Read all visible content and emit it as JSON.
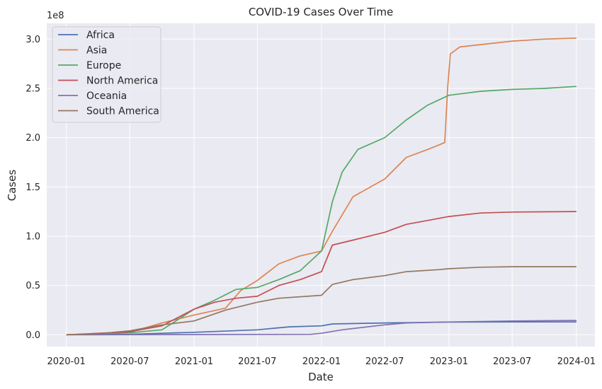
{
  "chart_data": {
    "type": "line",
    "title": "COVID-19 Cases Over Time",
    "xlabel": "Date",
    "ylabel": "Cases",
    "y_offset_label": "1e8",
    "y_multiplier": 100000000,
    "xlim": [
      "2019-11-06",
      "2024-02-23"
    ],
    "ylim": [
      -0.12,
      3.16
    ],
    "grid": true,
    "legend_position": "upper left",
    "background": "#eaeaf2",
    "x_ticks": [
      {
        "date": "2020-01-01",
        "label": "2020-01"
      },
      {
        "date": "2020-07-01",
        "label": "2020-07"
      },
      {
        "date": "2021-01-01",
        "label": "2021-01"
      },
      {
        "date": "2021-07-01",
        "label": "2021-07"
      },
      {
        "date": "2022-01-01",
        "label": "2022-01"
      },
      {
        "date": "2022-07-01",
        "label": "2022-07"
      },
      {
        "date": "2023-01-01",
        "label": "2023-01"
      },
      {
        "date": "2023-07-01",
        "label": "2023-07"
      },
      {
        "date": "2024-01-01",
        "label": "2024-01"
      }
    ],
    "y_ticks": [
      {
        "value": 0.0,
        "label": "0.0"
      },
      {
        "value": 0.5,
        "label": "0.5"
      },
      {
        "value": 1.0,
        "label": "1.0"
      },
      {
        "value": 1.5,
        "label": "1.5"
      },
      {
        "value": 2.0,
        "label": "2.0"
      },
      {
        "value": 2.5,
        "label": "2.5"
      },
      {
        "value": 3.0,
        "label": "3.0"
      }
    ],
    "series": [
      {
        "name": "Africa",
        "color": "#4c72b0",
        "points": [
          [
            "2020-01-01",
            0.0
          ],
          [
            "2020-07-01",
            0.005
          ],
          [
            "2020-10-01",
            0.015
          ],
          [
            "2021-01-01",
            0.025
          ],
          [
            "2021-07-01",
            0.05
          ],
          [
            "2021-10-01",
            0.08
          ],
          [
            "2022-01-01",
            0.09
          ],
          [
            "2022-02-01",
            0.11
          ],
          [
            "2022-07-01",
            0.12
          ],
          [
            "2023-01-01",
            0.128
          ],
          [
            "2023-07-01",
            0.13
          ],
          [
            "2024-01-01",
            0.13
          ]
        ]
      },
      {
        "name": "Asia",
        "color": "#dd8452",
        "points": [
          [
            "2020-01-01",
            0.0
          ],
          [
            "2020-04-01",
            0.01
          ],
          [
            "2020-07-01",
            0.025
          ],
          [
            "2020-10-01",
            0.12
          ],
          [
            "2021-01-01",
            0.2
          ],
          [
            "2021-04-01",
            0.27
          ],
          [
            "2021-05-15",
            0.45
          ],
          [
            "2021-07-01",
            0.55
          ],
          [
            "2021-09-01",
            0.72
          ],
          [
            "2021-11-01",
            0.8
          ],
          [
            "2022-01-01",
            0.85
          ],
          [
            "2022-02-01",
            1.05
          ],
          [
            "2022-04-01",
            1.4
          ],
          [
            "2022-07-01",
            1.58
          ],
          [
            "2022-09-01",
            1.8
          ],
          [
            "2022-11-01",
            1.88
          ],
          [
            "2022-12-20",
            1.95
          ],
          [
            "2022-12-28",
            2.5
          ],
          [
            "2023-01-05",
            2.85
          ],
          [
            "2023-02-01",
            2.92
          ],
          [
            "2023-07-01",
            2.98
          ],
          [
            "2023-10-01",
            3.0
          ],
          [
            "2024-01-01",
            3.01
          ]
        ]
      },
      {
        "name": "Europe",
        "color": "#55a868",
        "points": [
          [
            "2020-01-01",
            0.0
          ],
          [
            "2020-07-01",
            0.02
          ],
          [
            "2020-10-01",
            0.05
          ],
          [
            "2020-11-01",
            0.12
          ],
          [
            "2021-01-01",
            0.26
          ],
          [
            "2021-03-01",
            0.35
          ],
          [
            "2021-05-01",
            0.46
          ],
          [
            "2021-07-01",
            0.48
          ],
          [
            "2021-09-01",
            0.56
          ],
          [
            "2021-11-01",
            0.65
          ],
          [
            "2022-01-01",
            0.85
          ],
          [
            "2022-02-01",
            1.35
          ],
          [
            "2022-03-01",
            1.65
          ],
          [
            "2022-04-15",
            1.88
          ],
          [
            "2022-07-01",
            2.0
          ],
          [
            "2022-09-01",
            2.18
          ],
          [
            "2022-11-01",
            2.33
          ],
          [
            "2023-01-01",
            2.43
          ],
          [
            "2023-04-01",
            2.47
          ],
          [
            "2023-07-01",
            2.49
          ],
          [
            "2023-10-01",
            2.5
          ],
          [
            "2024-01-01",
            2.52
          ]
        ]
      },
      {
        "name": "North America",
        "color": "#c44e52",
        "points": [
          [
            "2020-01-01",
            0.0
          ],
          [
            "2020-07-01",
            0.03
          ],
          [
            "2020-10-01",
            0.09
          ],
          [
            "2021-01-01",
            0.26
          ],
          [
            "2021-03-01",
            0.33
          ],
          [
            "2021-05-01",
            0.37
          ],
          [
            "2021-07-01",
            0.39
          ],
          [
            "2021-09-01",
            0.5
          ],
          [
            "2021-11-01",
            0.56
          ],
          [
            "2022-01-01",
            0.64
          ],
          [
            "2022-02-01",
            0.91
          ],
          [
            "2022-04-01",
            0.96
          ],
          [
            "2022-07-01",
            1.04
          ],
          [
            "2022-09-01",
            1.12
          ],
          [
            "2022-11-01",
            1.16
          ],
          [
            "2023-01-01",
            1.2
          ],
          [
            "2023-04-01",
            1.235
          ],
          [
            "2023-07-01",
            1.245
          ],
          [
            "2024-01-01",
            1.25
          ]
        ]
      },
      {
        "name": "Oceania",
        "color": "#8172b3",
        "points": [
          [
            "2020-01-01",
            0.0
          ],
          [
            "2021-01-01",
            0.002
          ],
          [
            "2021-12-01",
            0.004
          ],
          [
            "2022-01-01",
            0.015
          ],
          [
            "2022-03-01",
            0.05
          ],
          [
            "2022-07-01",
            0.1
          ],
          [
            "2022-09-01",
            0.12
          ],
          [
            "2023-01-01",
            0.13
          ],
          [
            "2023-07-01",
            0.14
          ],
          [
            "2024-01-01",
            0.145
          ]
        ]
      },
      {
        "name": "South America",
        "color": "#937860",
        "points": [
          [
            "2020-01-01",
            0.0
          ],
          [
            "2020-04-01",
            0.01
          ],
          [
            "2020-07-01",
            0.04
          ],
          [
            "2020-10-01",
            0.1
          ],
          [
            "2021-01-01",
            0.14
          ],
          [
            "2021-04-01",
            0.25
          ],
          [
            "2021-07-01",
            0.33
          ],
          [
            "2021-09-01",
            0.37
          ],
          [
            "2022-01-01",
            0.4
          ],
          [
            "2022-02-01",
            0.51
          ],
          [
            "2022-04-01",
            0.56
          ],
          [
            "2022-07-01",
            0.6
          ],
          [
            "2022-09-01",
            0.64
          ],
          [
            "2022-12-01",
            0.66
          ],
          [
            "2023-01-01",
            0.67
          ],
          [
            "2023-04-01",
            0.685
          ],
          [
            "2023-07-01",
            0.69
          ],
          [
            "2024-01-01",
            0.69
          ]
        ]
      }
    ]
  }
}
